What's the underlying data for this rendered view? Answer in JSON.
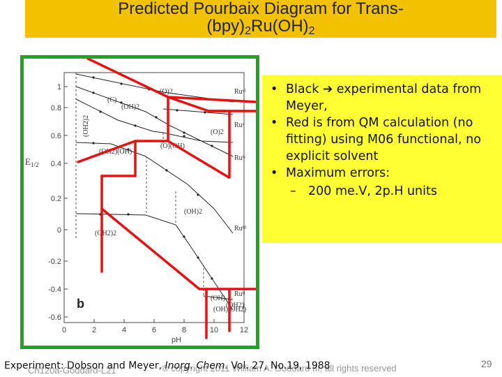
{
  "title": {
    "line1": "Predicted Pourbaix Diagram for Trans-",
    "line2_prefix": "(bpy)",
    "line2_sub1": "2",
    "line2_mid": "Ru(OH)",
    "line2_sub2": "2"
  },
  "plot": {
    "panel_label": "b",
    "y_axis_label": "E",
    "y_axis_label_sub": "1/2",
    "x_axis_label": "pH",
    "x_ticks": [
      "0",
      "2",
      "4",
      "6",
      "8",
      "10",
      "12"
    ],
    "y_ticks": [
      "1",
      "0.8",
      "0.6",
      "0.4",
      "0.2",
      "0",
      "-0.2",
      "-0.4",
      "-0.6"
    ],
    "region_labels": [
      "(O)2",
      "(C)",
      "(OH)2",
      "(OH2)2",
      "(OH2)(OH)",
      "(O)(OH)",
      "(O)2",
      "(OH)2",
      "(OH2)2",
      "(OH)",
      "(OH2)",
      "(OH)(OH2)"
    ],
    "oxidation_labels": [
      "Ruᵛᴵ",
      "Ruᵛ",
      "Ruᴵᵛ",
      "Ruᴵᴵᴵ",
      "Ruᴵᴵ"
    ],
    "colors": {
      "experimental": "#222222",
      "calculated": "#e81010",
      "frame": "#1fa51f"
    }
  },
  "notes": {
    "bullet1_prefix": "Black",
    "bullet1_suffix": "experimental data from Meyer,",
    "bullet2": "Red is from QM calculation (no fitting) using M06 functional, no explicit solvent",
    "bullet3": "Maximum errors:",
    "sub_bullet": "200 me.V, 2p.H units"
  },
  "footer": {
    "citation_prefix": "Experiment: Dobson and Meyer, ",
    "citation_journal": "Inorg. Chem.",
    "citation_suffix": " Vol. 27, No.19, 1988",
    "course": "Ch120a-Goddard-L21",
    "copyright": "© copyright 2011 William A. Goddard III, all rights reserved",
    "page_number": "29"
  }
}
